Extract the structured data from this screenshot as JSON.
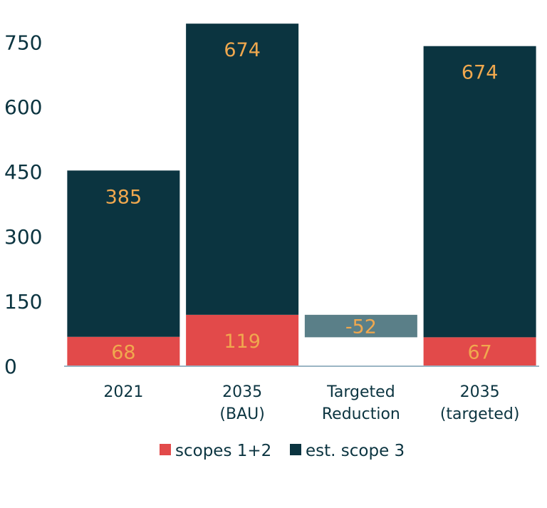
{
  "chart_data": {
    "type": "bar",
    "stacked": true,
    "title": "",
    "xlabel": "",
    "ylabel": "",
    "ylim": [
      0,
      790
    ],
    "yticks": [
      0,
      150,
      300,
      450,
      600,
      750
    ],
    "grid": false,
    "categories": [
      {
        "lines": [
          "2021"
        ]
      },
      {
        "lines": [
          "2035",
          "(BAU)"
        ]
      },
      {
        "lines": [
          "Targeted",
          "Reduction"
        ]
      },
      {
        "lines": [
          "2035",
          "(targeted)"
        ]
      }
    ],
    "series": [
      {
        "name": "scopes 1+2",
        "color": "#e24a4a",
        "values": [
          68,
          119,
          null,
          67
        ],
        "labels": [
          "68",
          "119",
          "",
          "67"
        ]
      },
      {
        "name": "est. scope 3",
        "color": "#0b3440",
        "values": [
          385,
          674,
          null,
          674
        ],
        "labels": [
          "385",
          "674",
          "",
          "674"
        ]
      }
    ],
    "reduction": {
      "category_index": 2,
      "from": 119,
      "to": 67,
      "value": -52,
      "label": "-52",
      "color": "#5a7f88"
    },
    "label_color": "#f0a84e",
    "legend_position": "bottom-center"
  }
}
